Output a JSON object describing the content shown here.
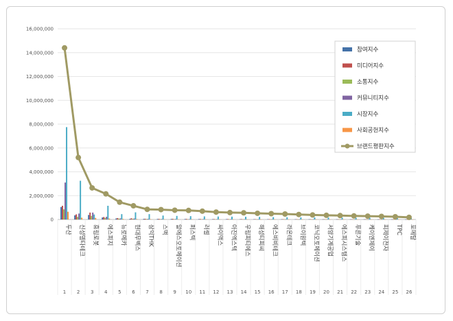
{
  "chart_data": {
    "type": "bar",
    "categories": [
      "두산",
      "신성델타테크",
      "휴림로봇",
      "에스피지",
      "뉴로메카",
      "현대무벡스",
      "삼익THK",
      "스맥",
      "알에스오토메이션",
      "퍼스텍",
      "러셀",
      "싸이맥스",
      "아진엑스텍",
      "우림피티에스",
      "해성티피씨",
      "에스비비테크",
      "라온테크",
      "브이원텍",
      "코닉오토메이션",
      "서암기계공업",
      "에스피시스템스",
      "푸른기술",
      "케이엔제이",
      "피제이전자",
      "TPC",
      "포메탈"
    ],
    "ranks": [
      "1",
      "2",
      "3",
      "4",
      "5",
      "6",
      "7",
      "8",
      "9",
      "10",
      "11",
      "12",
      "13",
      "14",
      "15",
      "16",
      "17",
      "18",
      "19",
      "20",
      "21",
      "22",
      "23",
      "24",
      "25",
      "26"
    ],
    "y_ticks": [
      "0",
      "2,000,000",
      "4,000,000",
      "6,000,000",
      "8,000,000",
      "10,000,000",
      "12,000,000",
      "14,000,000",
      "16,000,000"
    ],
    "ylim": [
      0,
      16000000
    ],
    "series": [
      {
        "name": "참여지수",
        "color": "#4472a8",
        "values": [
          1050000,
          350000,
          380000,
          170000,
          90000,
          60000,
          55000,
          50000,
          50000,
          45000,
          40000,
          35000,
          35000,
          30000,
          30000,
          30000,
          25000,
          25000,
          25000,
          20000,
          20000,
          20000,
          20000,
          15000,
          15000,
          15000
        ]
      },
      {
        "name": "미디어지수",
        "color": "#c0504d",
        "values": [
          1150000,
          430000,
          580000,
          210000,
          120000,
          100000,
          60000,
          55000,
          60000,
          50000,
          45000,
          40000,
          40000,
          35000,
          30000,
          30000,
          30000,
          25000,
          25000,
          25000,
          20000,
          20000,
          20000,
          20000,
          15000,
          15000
        ]
      },
      {
        "name": "소통지수",
        "color": "#9bbb59",
        "values": [
          850000,
          220000,
          300000,
          130000,
          70000,
          60000,
          40000,
          35000,
          35000,
          30000,
          30000,
          25000,
          25000,
          20000,
          20000,
          20000,
          20000,
          15000,
          15000,
          15000,
          15000,
          10000,
          10000,
          10000,
          10000,
          10000
        ]
      },
      {
        "name": "커뮤니티지수",
        "color": "#8064a2",
        "values": [
          3100000,
          500000,
          580000,
          230000,
          90000,
          80000,
          50000,
          40000,
          40000,
          35000,
          35000,
          30000,
          30000,
          25000,
          25000,
          25000,
          20000,
          20000,
          20000,
          20000,
          15000,
          15000,
          15000,
          15000,
          10000,
          10000
        ]
      },
      {
        "name": "시장지수",
        "color": "#4bacc6",
        "values": [
          7750000,
          3250000,
          420000,
          1150000,
          450000,
          600000,
          450000,
          330000,
          300000,
          280000,
          260000,
          250000,
          240000,
          230000,
          220000,
          200000,
          190000,
          180000,
          170000,
          160000,
          150000,
          140000,
          140000,
          130000,
          120000,
          110000
        ]
      },
      {
        "name": "사회공헌지수",
        "color": "#f79646",
        "values": [
          650000,
          150000,
          130000,
          80000,
          50000,
          40000,
          30000,
          25000,
          25000,
          20000,
          20000,
          20000,
          15000,
          15000,
          15000,
          15000,
          10000,
          10000,
          10000,
          10000,
          10000,
          10000,
          10000,
          10000,
          10000,
          10000
        ]
      }
    ],
    "line_series": {
      "name": "브랜드평판지수",
      "color": "#a09a64",
      "values": [
        14400000,
        5200000,
        2650000,
        2150000,
        1450000,
        1150000,
        850000,
        830000,
        780000,
        760000,
        700000,
        620000,
        580000,
        560000,
        520000,
        490000,
        460000,
        420000,
        380000,
        350000,
        330000,
        300000,
        280000,
        260000,
        230000,
        180000
      ]
    },
    "legend_position": "top-right"
  }
}
